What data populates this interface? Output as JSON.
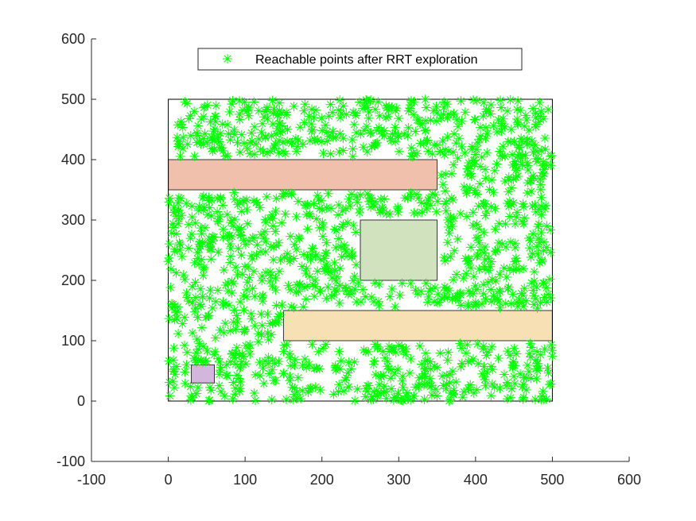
{
  "chart_data": {
    "type": "scatter",
    "xlim": [
      -100,
      600
    ],
    "ylim": [
      -100,
      600
    ],
    "xticks": [
      -100,
      0,
      100,
      200,
      300,
      400,
      500,
      600
    ],
    "yticks": [
      -100,
      0,
      100,
      200,
      300,
      400,
      500,
      600
    ],
    "grid": false,
    "legend": {
      "position": "top-center",
      "entries": [
        "Reachable points after RRT exploration"
      ]
    },
    "series": [
      {
        "name": "Reachable points after RRT exploration",
        "marker": "asterisk",
        "color": "#00ff00",
        "point_count": 1500,
        "x_range": [
          0,
          500
        ],
        "y_range": [
          0,
          500
        ]
      }
    ],
    "boundary": {
      "x": [
        0,
        500
      ],
      "y": [
        0,
        500
      ]
    },
    "obstacles": [
      {
        "x": [
          0,
          350
        ],
        "y": [
          350,
          400
        ],
        "color": "#f0c0ad"
      },
      {
        "x": [
          250,
          350
        ],
        "y": [
          200,
          300
        ],
        "color": "#d1e2be"
      },
      {
        "x": [
          150,
          500
        ],
        "y": [
          100,
          150
        ],
        "color": "#f7e0b3"
      },
      {
        "x": [
          30,
          60
        ],
        "y": [
          30,
          60
        ],
        "color": "#d2b6db"
      }
    ]
  }
}
